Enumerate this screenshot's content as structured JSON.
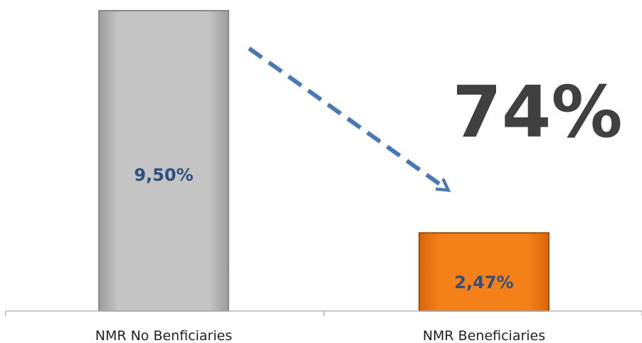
{
  "chart_data": {
    "type": "bar",
    "categories": [
      "NMR No Benficiaries",
      "NMR Beneficiaries"
    ],
    "values": [
      9.5,
      2.47
    ],
    "value_labels": [
      "9,50%",
      "2,47%"
    ],
    "bar_colors": [
      "#bdbdbd",
      "#f07a14"
    ],
    "bar_border_colors": [
      "#8a8a8a",
      "#a04f08"
    ],
    "value_label_color": "#2f4f7f",
    "annotation": "74%",
    "annotation_color": "#404040",
    "arrow_color": "#4a78b5",
    "ylim": [
      0,
      9.5
    ],
    "grid": false,
    "legend": "none",
    "title": "",
    "xlabel": "",
    "ylabel": ""
  }
}
